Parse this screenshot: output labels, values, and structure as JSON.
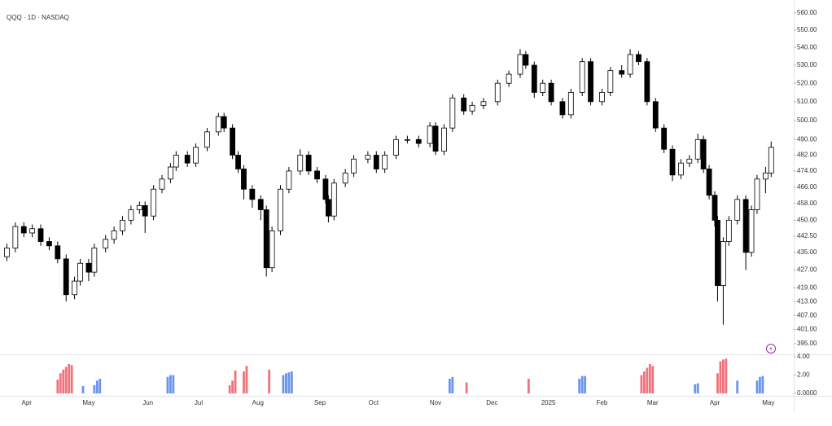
{
  "chart_data": [
    {
      "type": "candlestick",
      "title": "QQQ · 1D · NASDAQ",
      "log_scale": true,
      "grid": false,
      "up_color": "#ffffff",
      "down_color": "#000000",
      "edge_color": "#000000",
      "x": [
        1,
        4,
        7,
        10,
        13,
        16,
        19,
        22,
        25,
        27,
        30,
        32,
        36,
        39,
        42,
        45,
        48,
        50,
        53,
        56,
        59,
        61,
        65,
        68,
        72,
        76,
        78,
        81,
        83,
        85,
        88,
        91,
        93,
        95,
        98,
        101,
        105,
        108,
        111,
        114,
        115,
        117,
        121,
        124,
        129,
        132,
        135,
        139,
        143,
        147,
        151,
        153,
        156,
        159,
        163,
        166,
        170,
        175,
        179,
        183,
        185,
        188,
        191,
        194,
        198,
        201,
        205,
        208,
        212,
        215,
        219,
        222,
        225,
        228,
        231,
        234,
        237,
        240,
        243,
        246,
        248,
        250,
        252,
        253,
        255,
        257,
        260,
        263,
        265,
        267,
        270,
        272
      ],
      "open": [
        433,
        437,
        447,
        444,
        446,
        440,
        438,
        432,
        416,
        422,
        430,
        426,
        437,
        441,
        445,
        450,
        455,
        457,
        452,
        465,
        470,
        476,
        482,
        478,
        486,
        494,
        502,
        496,
        482,
        475,
        465,
        460,
        455,
        428,
        445,
        465,
        474,
        482,
        474,
        470,
        460,
        452,
        468,
        473,
        480,
        482,
        475,
        482,
        490,
        490,
        488,
        497,
        484,
        496,
        512,
        505,
        508,
        510,
        520,
        525,
        536,
        530,
        515,
        520,
        510,
        503,
        515,
        532,
        510,
        515,
        527,
        525,
        536,
        532,
        510,
        496,
        485,
        472,
        478,
        480,
        490,
        475,
        462,
        450,
        420,
        440,
        450,
        460,
        435,
        455,
        470,
        473
      ],
      "high": [
        439,
        449,
        449,
        448,
        448,
        442,
        440,
        434,
        424,
        432,
        432,
        439,
        443,
        447,
        452,
        457,
        459,
        459,
        467,
        472,
        478,
        484,
        484,
        488,
        496,
        504,
        504,
        498,
        484,
        477,
        467,
        462,
        457,
        447,
        467,
        476,
        485,
        484,
        476,
        472,
        462,
        470,
        475,
        482,
        484,
        484,
        484,
        492,
        492,
        492,
        499,
        499,
        498,
        514,
        514,
        510,
        512,
        522,
        527,
        539,
        538,
        532,
        522,
        522,
        512,
        517,
        534,
        534,
        517,
        529,
        530,
        539,
        538,
        534,
        512,
        498,
        487,
        480,
        482,
        493,
        492,
        477,
        464,
        452,
        442,
        452,
        462,
        462,
        457,
        472,
        476,
        489
      ],
      "low": [
        431,
        435,
        442,
        442,
        438,
        436,
        430,
        413,
        414,
        420,
        422,
        424,
        435,
        439,
        443,
        448,
        453,
        444,
        450,
        463,
        468,
        474,
        476,
        476,
        484,
        492,
        494,
        480,
        473,
        460,
        456,
        450,
        424,
        426,
        443,
        463,
        472,
        472,
        468,
        458,
        449,
        450,
        466,
        471,
        478,
        473,
        473,
        480,
        488,
        486,
        486,
        482,
        482,
        494,
        503,
        503,
        506,
        508,
        518,
        523,
        528,
        512,
        513,
        508,
        501,
        501,
        513,
        508,
        508,
        513,
        523,
        523,
        530,
        508,
        494,
        483,
        469,
        470,
        476,
        478,
        473,
        460,
        447,
        413,
        403,
        438,
        448,
        427,
        433,
        453,
        463,
        471
      ],
      "close": [
        437,
        447,
        444,
        446,
        440,
        438,
        432,
        416,
        422,
        430,
        426,
        437,
        441,
        445,
        450,
        455,
        457,
        452,
        465,
        470,
        476,
        482,
        478,
        486,
        494,
        502,
        496,
        482,
        475,
        465,
        460,
        455,
        428,
        445,
        465,
        474,
        482,
        474,
        470,
        460,
        452,
        468,
        473,
        480,
        482,
        475,
        482,
        490,
        490,
        488,
        497,
        484,
        496,
        512,
        505,
        508,
        510,
        520,
        525,
        536,
        530,
        515,
        520,
        510,
        503,
        515,
        532,
        510,
        515,
        527,
        525,
        536,
        532,
        510,
        496,
        485,
        472,
        478,
        480,
        490,
        475,
        462,
        450,
        420,
        440,
        450,
        460,
        435,
        455,
        470,
        473,
        486
      ],
      "xlim": [
        0,
        280
      ],
      "xticks": [
        {
          "value": 8,
          "label": "Apr"
        },
        {
          "value": 30,
          "label": "May"
        },
        {
          "value": 51,
          "label": "Jun"
        },
        {
          "value": 69,
          "label": "Jul"
        },
        {
          "value": 90,
          "label": "Aug"
        },
        {
          "value": 112,
          "label": "Sep"
        },
        {
          "value": 131,
          "label": "Oct"
        },
        {
          "value": 153,
          "label": "Nov"
        },
        {
          "value": 173,
          "label": "Dec"
        },
        {
          "value": 193,
          "label": "2025"
        },
        {
          "value": 212,
          "label": "Feb"
        },
        {
          "value": 230,
          "label": "Mar"
        },
        {
          "value": 252,
          "label": "Apr"
        },
        {
          "value": 271,
          "label": "May"
        }
      ],
      "ylim": [
        395,
        560
      ],
      "yticks": [
        {
          "value": 560,
          "label": "560.00"
        },
        {
          "value": 550,
          "label": "550.00"
        },
        {
          "value": 540,
          "label": "540.00"
        },
        {
          "value": 530,
          "label": "530.00"
        },
        {
          "value": 520,
          "label": "520.00"
        },
        {
          "value": 510,
          "label": "510.00"
        },
        {
          "value": 500,
          "label": "500.00"
        },
        {
          "value": 490,
          "label": "490.00"
        },
        {
          "value": 482,
          "label": "482.00"
        },
        {
          "value": 474,
          "label": "474.00"
        },
        {
          "value": 466,
          "label": "466.00"
        },
        {
          "value": 458,
          "label": "458.00"
        },
        {
          "value": 450,
          "label": "450.00"
        },
        {
          "value": 442.5,
          "label": "442.50"
        },
        {
          "value": 435,
          "label": "435.00"
        },
        {
          "value": 427,
          "label": "427.00"
        },
        {
          "value": 419,
          "label": "419.00"
        },
        {
          "value": 413,
          "label": "413.00"
        },
        {
          "value": 407,
          "label": "407.00"
        },
        {
          "value": 401,
          "label": "401.00"
        },
        {
          "value": 395,
          "label": "395.00"
        }
      ]
    },
    {
      "type": "bar",
      "xlim": [
        0,
        280
      ],
      "ylim": [
        0,
        4
      ],
      "yticks": [
        {
          "value": 4,
          "label": "4.00"
        },
        {
          "value": 2,
          "label": "2.00"
        },
        {
          "value": 0,
          "label": "0.0000"
        }
      ],
      "series": [
        {
          "color": "#f0737b",
          "x": [
            19,
            20,
            21,
            22,
            23,
            24,
            80,
            81,
            82,
            85,
            86,
            94,
            164,
            186,
            226,
            227,
            228,
            229,
            230,
            253,
            254,
            255,
            256
          ],
          "values": [
            1.5,
            2.2,
            2.6,
            2.9,
            3.2,
            3.1,
            0.9,
            1.4,
            2.5,
            2.4,
            3.0,
            2.6,
            1.2,
            1.6,
            2.0,
            2.4,
            2.8,
            3.2,
            3.0,
            2.2,
            3.5,
            3.7,
            3.8
          ]
        },
        {
          "color": "#6b93f0",
          "x": [
            28,
            32,
            33,
            34,
            58,
            59,
            60,
            99,
            100,
            101,
            102,
            158,
            159,
            204,
            205,
            206,
            245,
            246,
            260,
            267,
            268,
            269
          ],
          "values": [
            0.8,
            0.9,
            1.4,
            1.6,
            1.8,
            2.0,
            2.0,
            2.0,
            2.2,
            2.3,
            2.4,
            1.6,
            1.8,
            1.6,
            1.9,
            1.9,
            1.0,
            1.1,
            1.4,
            1.4,
            1.8,
            1.9
          ]
        }
      ]
    }
  ]
}
